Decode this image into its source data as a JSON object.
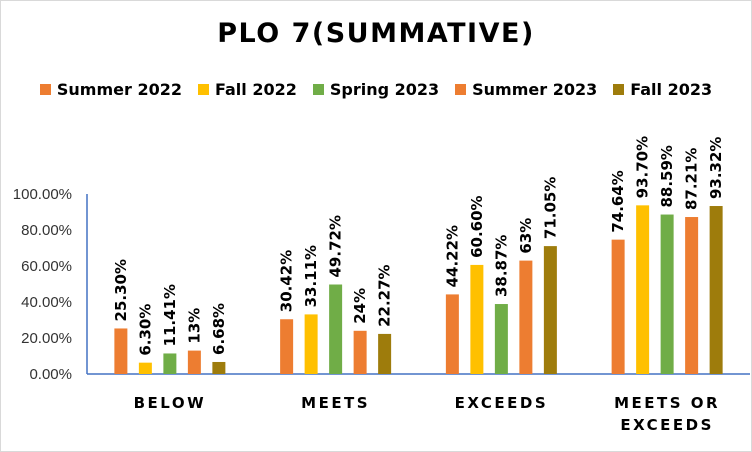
{
  "chart_data": {
    "type": "bar",
    "title": "PLO 7(SUMMATIVE)",
    "categories": [
      [
        "BELOW"
      ],
      [
        "MEETS"
      ],
      [
        "EXCEEDS"
      ],
      [
        "MEETS OR",
        "EXCEEDS"
      ]
    ],
    "series": [
      {
        "name": "Summer 2022",
        "color": "#ED7D31",
        "values": [
          25.3,
          30.42,
          44.22,
          74.64
        ],
        "labels": [
          "25.30%",
          "30.42%",
          "44.22%",
          "74.64%"
        ]
      },
      {
        "name": "Fall 2022",
        "color": "#FFC000",
        "values": [
          6.3,
          33.11,
          60.6,
          93.7
        ],
        "labels": [
          "6.30%",
          "33.11%",
          "60.60%",
          "93.70%"
        ]
      },
      {
        "name": "Spring 2023",
        "color": "#70AD47",
        "values": [
          11.41,
          49.72,
          38.87,
          88.59
        ],
        "labels": [
          "11.41%",
          "49.72%",
          "38.87%",
          "88.59%"
        ]
      },
      {
        "name": "Summer 2023",
        "color": "#ED7D31",
        "values": [
          13,
          24,
          63,
          87.21
        ],
        "labels": [
          "13%",
          "24%",
          "63%",
          "87.21%"
        ]
      },
      {
        "name": "Fall 2023",
        "color": "#9E7C0C",
        "values": [
          6.68,
          22.27,
          71.05,
          93.32
        ],
        "labels": [
          "6.68%",
          "22.27%",
          "71.05%",
          "93.32%"
        ]
      }
    ],
    "yticks": [
      "0.00%",
      "20.00%",
      "40.00%",
      "60.00%",
      "80.00%",
      "100.00%"
    ],
    "ylim": [
      0,
      100
    ],
    "grid": false,
    "legend_position": "top"
  }
}
